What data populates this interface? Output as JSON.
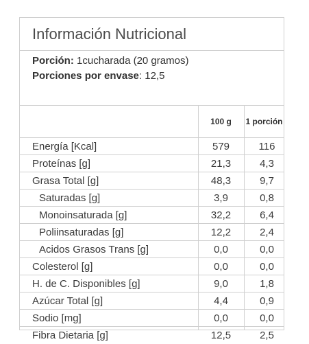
{
  "title": "Información Nutricional",
  "serving": {
    "portion_label": "Porción:",
    "portion_value": "1cucharada (20 gramos)",
    "per_container_label": "Porciones por envase",
    "per_container_value": ": 12,5"
  },
  "columns": {
    "per100": "100 g",
    "perPortion": "1 porción"
  },
  "rows": [
    {
      "label": "Energía [Kcal]",
      "per100": "579",
      "perPortion": "116",
      "indent": false
    },
    {
      "label": "Proteínas [g]",
      "per100": "21,3",
      "perPortion": "4,3",
      "indent": false
    },
    {
      "label": "Grasa Total [g]",
      "per100": "48,3",
      "perPortion": "9,7",
      "indent": false
    },
    {
      "label": "Saturadas [g]",
      "per100": "3,9",
      "perPortion": "0,8",
      "indent": true
    },
    {
      "label": "Monoinsaturada [g]",
      "per100": "32,2",
      "perPortion": "6,4",
      "indent": true
    },
    {
      "label": "Poliinsaturadas [g]",
      "per100": "12,2",
      "perPortion": "2,4",
      "indent": true
    },
    {
      "label": "Acidos Grasos Trans [g]",
      "per100": "0,0",
      "perPortion": "0,0",
      "indent": true
    },
    {
      "label": "Colesterol [g]",
      "per100": "0,0",
      "perPortion": "0,0",
      "indent": false
    },
    {
      "label": "H. de C. Disponibles [g]",
      "per100": "9,0",
      "perPortion": "1,8",
      "indent": false
    },
    {
      "label": "Azúcar Total [g]",
      "per100": "4,4",
      "perPortion": "0,9",
      "indent": false
    },
    {
      "label": "Sodio [mg]",
      "per100": "0,0",
      "perPortion": "0,0",
      "indent": false
    },
    {
      "label": "Fibra Dietaria [g]",
      "per100": "12,5",
      "perPortion": "2,5",
      "indent": false
    }
  ]
}
